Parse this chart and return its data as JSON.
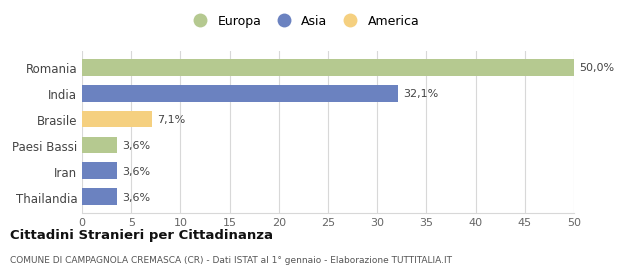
{
  "categories": [
    "Romania",
    "India",
    "Brasile",
    "Paesi Bassi",
    "Iran",
    "Thailandia"
  ],
  "values": [
    50.0,
    32.1,
    7.1,
    3.6,
    3.6,
    3.6
  ],
  "labels": [
    "50,0%",
    "32,1%",
    "7,1%",
    "3,6%",
    "3,6%",
    "3,6%"
  ],
  "bar_colors": [
    "#b5c990",
    "#6b82c0",
    "#f5d080",
    "#b5c990",
    "#6b82c0",
    "#6b82c0"
  ],
  "legend_entries": [
    {
      "label": "Europa",
      "color": "#b5c990"
    },
    {
      "label": "Asia",
      "color": "#6b82c0"
    },
    {
      "label": "America",
      "color": "#f5d080"
    }
  ],
  "xlim": [
    0,
    50
  ],
  "xticks": [
    0,
    5,
    10,
    15,
    20,
    25,
    30,
    35,
    40,
    45,
    50
  ],
  "title": "Cittadini Stranieri per Cittadinanza",
  "subtitle": "COMUNE DI CAMPAGNOLA CREMASCA (CR) - Dati ISTAT al 1° gennaio - Elaborazione TUTTITALIA.IT",
  "background_color": "#ffffff",
  "grid_color": "#d8d8d8"
}
